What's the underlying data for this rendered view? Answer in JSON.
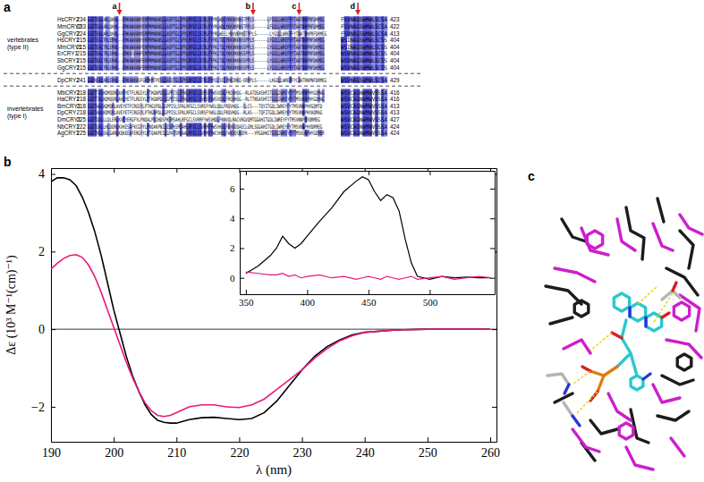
{
  "panel_labels": [
    "a",
    "b",
    "c"
  ],
  "alignment": {
    "groups": [
      {
        "label": [
          "vertebrates",
          "(type II)"
        ],
        "rows": [
          {
            "name": "HsCRY2",
            "start": 234,
            "segments": [
              "GGETEALARLDKHL--ERKAWVANYERPRMNANSLLASPTGLSPYLRFGCLSCRLFYYRLWDLYKKVKRNSTPPLS------LFGQLLWREFFYTAATNNPRFDRMEG",
              "FSVNAGSWMWLSCSA"
            ],
            "end": 423
          },
          {
            "name": "MmCRY2",
            "start": 233,
            "segments": [
              "GGETEALARLDKHL--ERKAWVANYERPRMNANSLLASPTGLSPYLRFGCLSCRLFYYRLWDLYKKVKRNSTPPLS------LFGQLLWREFFYTAATNNPRFDRMEG",
              "FSVNAGSWMWLSCSA"
            ],
            "end": 422
          },
          {
            "name": "GgCRY2",
            "start": 224,
            "segments": [
              "GGETEALARLDKHL--ERKAWVANYERPRMNANSLLASPTGLSPYLRFGCLSCRLFYYRLWEELYKKVKRNSTPPLS------LYGQLLWREFFYTAATNNPRFDRMEG",
              "FSVNAGSWMWLSCSA"
            ],
            "end": 413
          },
          {
            "name": "HsCRY1",
            "start": 215,
            "segments": [
              "GGETEALTRLERHL--ERKAWVANFERPRMNANSLLASPTGLSPYLRFGCLSCRLFYFKLTDLYKKVKKNSSPPLS------LYGQLLWREFFYTAATNNPRFDKMEG",
              "WSINAGSWMWLSCSS"
            ],
            "end": 404
          },
          {
            "name": "MmCRY1",
            "start": 215,
            "segments": [
              "GGETEALTRLERHL--ERKAWVANFERPRMNANSLLASPTGLSPYLRFGCLSCRLFYFKLTDLYKKVKKNSSPPLS------LYGQLLWREFFYTAATNNPRFDKMEG",
              "WSINAGSWMWLSCSS"
            ],
            "end": 404
          },
          {
            "name": "ErCRY1",
            "start": 215,
            "segments": [
              "GGETEALTRLERHL--ERKASVANFERPRMNANSLLASPTGLSPYLRFGCLSCRLFYFKLTDLYKKVKKNSSPPLS------LYGQLLWREFFYTAATNNPRFDKMEG",
              "WSVNAGSWMWLSCSS"
            ],
            "end": 404
          },
          {
            "name": "SbCRY1",
            "start": 215,
            "segments": [
              "GGETEALTRLERHL--ERKAWVANFERPRMNANSLLASPTGLSPYLRFGCLSCRLFYFKLTDLYKKVKKNSSPPLS------LYGQLLWREFFYTAATNNPRFDKMEG",
              "WSVNAGSWMWLSCSS"
            ],
            "end": 404
          },
          {
            "name": "GgCRY1",
            "start": 215,
            "segments": [
              "GGETEALTRLERHL--ERKAWVANFERPRMNANSLLASPTGLSPYLRFGCLSCRLFYFKLTDLYKKVKKNSSPPLS------LYGQLLWREFFYTAATNNPRFDKMEG",
              "WSVNAGSWMWLSCSS"
            ],
            "end": 404
          }
        ]
      },
      {
        "rows": [
          {
            "name": "DpCRY2",
            "start": 241,
            "segments": [
              "GGENEALARLERHL--ERKAWVASFGRPKMTPESLLASQTGLSPYLRFGCLSTRLFYYQLSELYRKIRKQ-ERPPLS------LHGQLLWREFFYCAATRNPNFDRMEG",
              "WSVNAGSWMWLSCSA"
            ],
            "end": 429
          }
        ]
      },
      {
        "label": [
          "invertebrates",
          "(type I)"
        ],
        "rows": [
          {
            "name": "MbCRY1",
            "start": 218,
            "segments": [
              "GGETTALKQMQQRLAVEYETFLRGSYLPTHGNPDLLGPPISLSPALRFGCLSVRSFYWSVQDLFRQVHQG--RLATQSASHFITGQLIWREYFYTMSVNNPHYGQMAG",
              "WSVCAGNWMWVSSSA"
            ],
            "end": 416
          },
          {
            "name": "HaCRY1",
            "start": 218,
            "segments": [
              "GGETTALKQMQQRLAVEYETFLRGSYLPTHGNPDLLGPPISLSPALRFGCLSVRSFYWSVQDLFRQVHQG--RLTTNSASHFITGQLIWREYFYTMSVNNPHYGQMAG",
              "WSVCAGNWMWVSSSA"
            ],
            "end": 416
          },
          {
            "name": "BmCRY1",
            "start": 218,
            "segments": [
              "GGETAALKQMQRLAVEYETFCRGSYLPTHGSPDLLGPPISLSPALRFGCLSVRSFYWSLQDLFRQVHQG--SLCS---TQYITGQLIWREYFYTMSVNNPHYGQMTD",
              "WSVCAGNWMWVSSSA"
            ],
            "end": 413
          },
          {
            "name": "DpCRY",
            "start": 218,
            "segments": [
              "GGETAALKQMQRLAVEYETFCRGSYLPTHGNPDLLGPPISLSPALRFGCLSVRSFYWSLQDLFRQVHQG--RLAS---TQFITGQLIWREYFYTMSVNNPHYAQMAG",
              "WSVCAGNWMWVSSSA"
            ],
            "end": 413
          },
          {
            "name": "DmCRY1",
            "start": 225,
            "segments": [
              "GGETQALLLDLERLKVEYERGFYLPNQALPNIHDSPKSMSAHLRFGCLSVRRFYWSVHDLFKNVQLRACVRGVQMTGGAHITGQLIWREYFYTMSVNNPNYDRMEG",
              "WSVCAGNWMWVSSSA"
            ],
            "end": 427
          },
          {
            "name": "NbCRY1",
            "start": 222,
            "segments": [
              "GGETQALLHLDQRLKVKESAFKCGYYLPNQAKPNILESPKSMSAHLRFGCLSVRMFYWSVHDLFKNVQQAECLGMLSGGAHITGQLIWREYFYTMSVNNPHYDRMEG",
              "WSVCAGNWMWVSSSA"
            ],
            "end": 424
          },
          {
            "name": "AgCRY1",
            "start": 225,
            "segments": [
              "GGETRALEALGARLKQKEEAFERGYYLPTQAKPEILGPATSMSAALRFGCLSVRMFYWCVHDLFAKVQSNQFK---YPGGHHITGQLIWREYFYTMSVQNPHYGEMER",
              "WSVCAGNWMWVSSSA"
            ],
            "end": 424
          }
        ]
      }
    ],
    "markers": [
      {
        "label": "a",
        "segment": 0,
        "column": 14
      },
      {
        "label": "b",
        "segment": 0,
        "column": 75
      },
      {
        "label": "c",
        "segment": 0,
        "column": 96
      },
      {
        "label": "d",
        "segment": 1,
        "column": 5
      }
    ]
  },
  "chart_data": [
    {
      "type": "line",
      "x_label": "λ (nm)",
      "y_label": "Δε (10³ M⁻¹(cm)⁻¹)",
      "x": [
        190,
        191,
        192,
        193,
        194,
        195,
        196,
        197,
        198,
        199,
        200,
        201,
        202,
        203,
        204,
        205,
        206,
        207,
        208,
        209,
        210,
        212,
        214,
        216,
        218,
        220,
        222,
        224,
        226,
        228,
        230,
        232,
        234,
        236,
        238,
        240,
        245,
        250,
        255,
        260
      ],
      "series": [
        {
          "color": "#000000",
          "values": [
            3.8,
            3.9,
            3.9,
            3.85,
            3.7,
            3.4,
            3.0,
            2.5,
            1.9,
            1.2,
            0.5,
            -0.1,
            -0.7,
            -1.2,
            -1.6,
            -1.95,
            -2.2,
            -2.35,
            -2.4,
            -2.42,
            -2.42,
            -2.33,
            -2.28,
            -2.27,
            -2.3,
            -2.33,
            -2.3,
            -2.15,
            -1.85,
            -1.45,
            -1.05,
            -0.7,
            -0.45,
            -0.28,
            -0.15,
            -0.08,
            -0.02,
            0.0,
            0.0,
            0.0
          ]
        },
        {
          "color": "#e8197c",
          "values": [
            1.55,
            1.7,
            1.82,
            1.9,
            1.92,
            1.85,
            1.65,
            1.35,
            0.95,
            0.5,
            0.05,
            -0.4,
            -0.85,
            -1.25,
            -1.6,
            -1.9,
            -2.1,
            -2.22,
            -2.25,
            -2.22,
            -2.15,
            -2.0,
            -1.95,
            -1.95,
            -2.0,
            -2.02,
            -1.95,
            -1.8,
            -1.55,
            -1.3,
            -1.05,
            -0.75,
            -0.5,
            -0.3,
            -0.17,
            -0.08,
            -0.02,
            0.0,
            0.0,
            0.0
          ]
        }
      ],
      "hline": 0,
      "xlim": [
        190,
        261
      ],
      "ylim": [
        -2.9,
        4.15
      ],
      "xticks": [
        190,
        200,
        210,
        220,
        230,
        240,
        250,
        260
      ],
      "yticks": [
        {
          "value": -2,
          "label": "−2"
        },
        0,
        2,
        4
      ]
    },
    {
      "type": "line",
      "x": [
        350,
        360,
        370,
        375,
        380,
        385,
        390,
        395,
        400,
        410,
        420,
        430,
        440,
        445,
        450,
        455,
        460,
        465,
        470,
        475,
        480,
        485,
        490,
        500,
        510,
        520,
        530,
        540,
        550
      ],
      "series": [
        {
          "color": "#000000",
          "values": [
            0.3,
            0.8,
            1.5,
            2.0,
            2.8,
            2.3,
            2.0,
            2.3,
            2.8,
            3.8,
            4.7,
            5.8,
            6.5,
            6.8,
            6.6,
            5.8,
            5.2,
            5.6,
            5.4,
            4.5,
            2.6,
            1.0,
            0.1,
            -0.1,
            0.1,
            0.0,
            0.05,
            0.0,
            0.0
          ]
        },
        {
          "color": "#e8197c",
          "values": [
            0.4,
            0.3,
            0.2,
            0.2,
            0.3,
            0.1,
            0.2,
            0.0,
            0.1,
            0.2,
            0.0,
            0.1,
            -0.1,
            0.0,
            0.1,
            0.0,
            -0.1,
            0.1,
            0.0,
            -0.1,
            0.0,
            0.1,
            -0.1,
            0.0,
            0.1,
            -0.1,
            0.0,
            0.1,
            0.0
          ]
        }
      ],
      "xlim": [
        345,
        553
      ],
      "ylim": [
        -1.1,
        7.2
      ],
      "xticks": [
        350,
        400,
        450,
        500
      ],
      "yticks": [
        0,
        2,
        4,
        6
      ]
    }
  ]
}
